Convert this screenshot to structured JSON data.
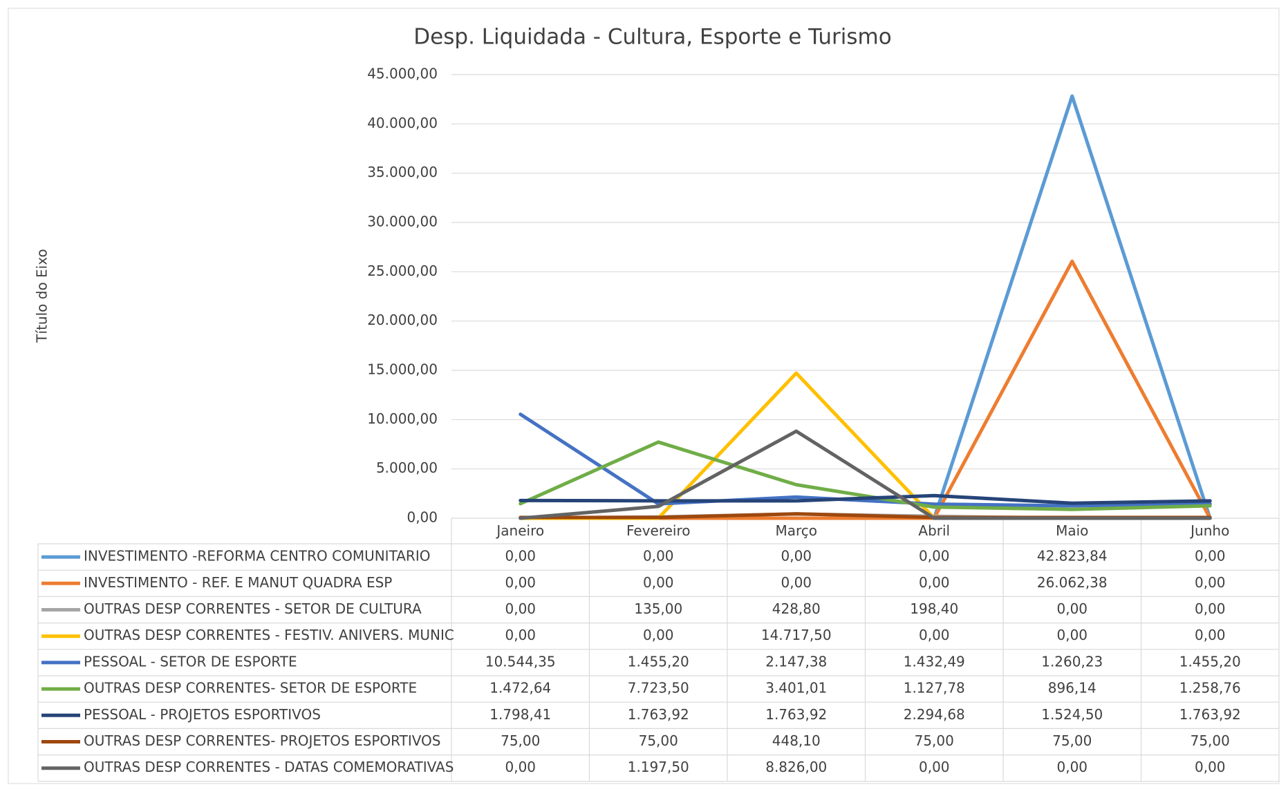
{
  "chart_data": {
    "type": "line",
    "title": "Desp. Liquidada - Cultura, Esporte e Turismo",
    "ylabel": "Título do Eixo",
    "categories": [
      "Janeiro",
      "Fevereiro",
      "Março",
      "Abril",
      "Maio",
      "Junho"
    ],
    "ylim": [
      0,
      45000
    ],
    "yticks": [
      {
        "value": 0,
        "label": "0,00"
      },
      {
        "value": 5000,
        "label": "5.000,00"
      },
      {
        "value": 10000,
        "label": "10.000,00"
      },
      {
        "value": 15000,
        "label": "15.000,00"
      },
      {
        "value": 20000,
        "label": "20.000,00"
      },
      {
        "value": 25000,
        "label": "25.000,00"
      },
      {
        "value": 30000,
        "label": "30.000,00"
      },
      {
        "value": 35000,
        "label": "35.000,00"
      },
      {
        "value": 40000,
        "label": "40.000,00"
      },
      {
        "value": 45000,
        "label": "45.000,00"
      }
    ],
    "grid": true,
    "series": [
      {
        "name": "INVESTIMENTO -REFORMA CENTRO COMUNITARIO",
        "color": "#5b9bd5",
        "values": [
          0,
          0,
          0,
          0,
          42823.84,
          0
        ],
        "value_labels": [
          "0,00",
          "0,00",
          "0,00",
          "0,00",
          "42.823,84",
          "0,00"
        ]
      },
      {
        "name": "INVESTIMENTO - REF. E MANUT QUADRA ESP",
        "color": "#ed7d31",
        "values": [
          0,
          0,
          0,
          0,
          26062.38,
          0
        ],
        "value_labels": [
          "0,00",
          "0,00",
          "0,00",
          "0,00",
          "26.062,38",
          "0,00"
        ]
      },
      {
        "name": "OUTRAS DESP CORRENTES - SETOR DE CULTURA",
        "color": "#a5a5a5",
        "values": [
          0,
          135,
          428.8,
          198.4,
          0,
          0
        ],
        "value_labels": [
          "0,00",
          "135,00",
          "428,80",
          "198,40",
          "0,00",
          "0,00"
        ]
      },
      {
        "name": "OUTRAS DESP CORRENTES - FESTIV. ANIVERS. MUNIC",
        "color": "#ffc000",
        "values": [
          0,
          0,
          14717.5,
          0,
          0,
          0
        ],
        "value_labels": [
          "0,00",
          "0,00",
          "14.717,50",
          "0,00",
          "0,00",
          "0,00"
        ]
      },
      {
        "name": "PESSOAL - SETOR DE ESPORTE",
        "color": "#4472c4",
        "values": [
          10544.35,
          1455.2,
          2147.38,
          1432.49,
          1260.23,
          1455.2
        ],
        "value_labels": [
          "10.544,35",
          "1.455,20",
          "2.147,38",
          "1.432,49",
          "1.260,23",
          "1.455,20"
        ]
      },
      {
        "name": "OUTRAS DESP CORRENTES- SETOR DE ESPORTE",
        "color": "#70ad47",
        "values": [
          1472.64,
          7723.5,
          3401.01,
          1127.78,
          896.14,
          1258.76
        ],
        "value_labels": [
          "1.472,64",
          "7.723,50",
          "3.401,01",
          "1.127,78",
          "896,14",
          "1.258,76"
        ]
      },
      {
        "name": "PESSOAL - PROJETOS ESPORTIVOS",
        "color": "#264478",
        "values": [
          1798.41,
          1763.92,
          1763.92,
          2294.68,
          1524.5,
          1763.92
        ],
        "value_labels": [
          "1.798,41",
          "1.763,92",
          "1.763,92",
          "2.294,68",
          "1.524,50",
          "1.763,92"
        ]
      },
      {
        "name": "OUTRAS DESP CORRENTES- PROJETOS ESPORTIVOS",
        "color": "#9e480e",
        "values": [
          75,
          75,
          448.1,
          75,
          75,
          75
        ],
        "value_labels": [
          "75,00",
          "75,00",
          "448,10",
          "75,00",
          "75,00",
          "75,00"
        ]
      },
      {
        "name": "OUTRAS DESP CORRENTES - DATAS COMEMORATIVAS",
        "color": "#636363",
        "values": [
          0,
          1197.5,
          8826,
          0,
          0,
          0
        ],
        "value_labels": [
          "0,00",
          "1.197,50",
          "8.826,00",
          "0,00",
          "0,00",
          "0,00"
        ]
      }
    ]
  }
}
